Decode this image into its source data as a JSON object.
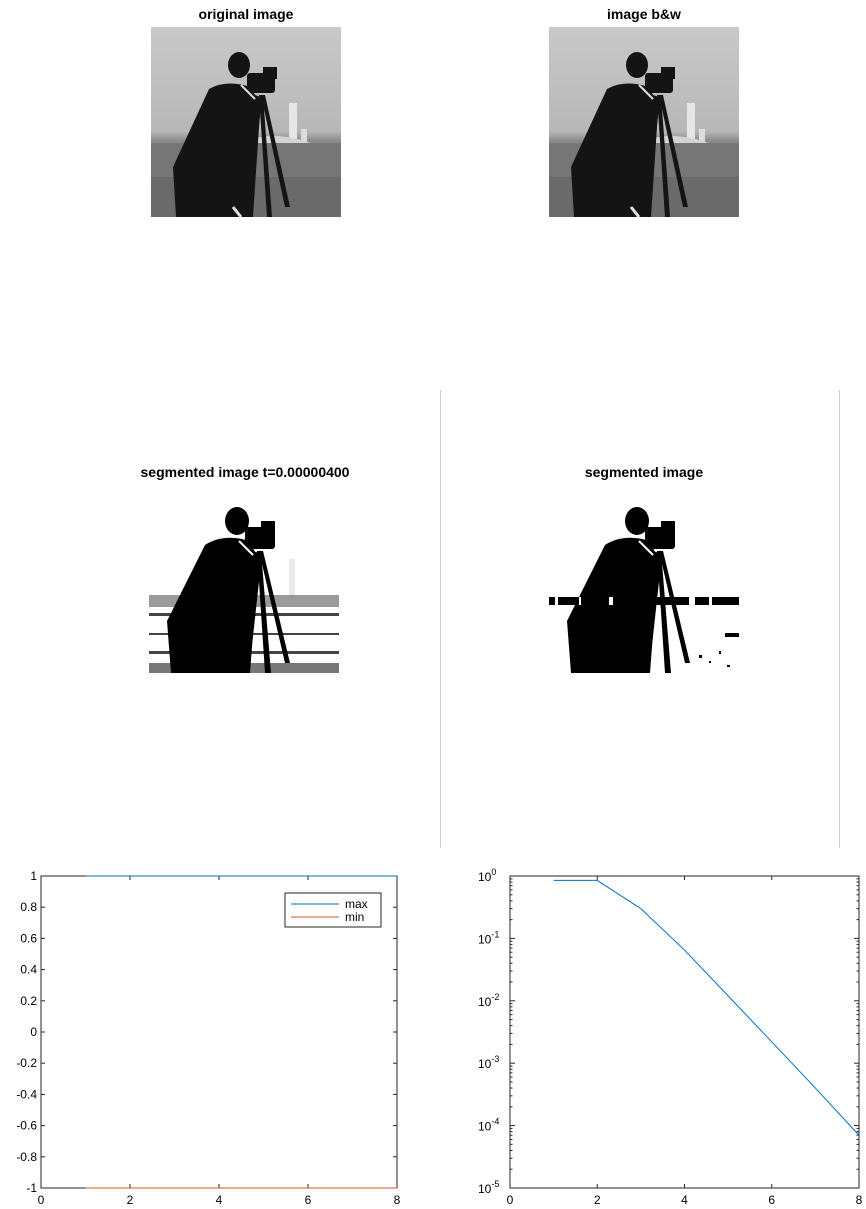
{
  "panels": {
    "original_title": "original image",
    "bw_title": "image b&w",
    "segmented_t_title": "segmented image t=0.00000400",
    "segmented_title": "segmented image"
  },
  "chart_data": [
    {
      "type": "line",
      "x": [
        1,
        2,
        3,
        4,
        5,
        6,
        7,
        8
      ],
      "series": [
        {
          "name": "max",
          "values": [
            1,
            1,
            1,
            1,
            1,
            1,
            1,
            1
          ],
          "color": "#0072BD"
        },
        {
          "name": "min",
          "values": [
            -1,
            -1,
            -1,
            -1,
            -1,
            -1,
            -1,
            -1
          ],
          "color": "#D95319"
        }
      ],
      "xlim": [
        0,
        8
      ],
      "ylim": [
        -1,
        1
      ],
      "xticks": [
        "0",
        "2",
        "4",
        "6",
        "8"
      ],
      "yticks": [
        "-1",
        "-0.8",
        "-0.6",
        "-0.4",
        "-0.2",
        "0",
        "0.2",
        "0.4",
        "0.6",
        "0.8",
        "1"
      ],
      "legend": "top-right",
      "grid": false
    },
    {
      "type": "line",
      "x": [
        1,
        2,
        3,
        4,
        5,
        6,
        7,
        8
      ],
      "series": [
        {
          "values": [
            0.85,
            0.85,
            0.3,
            0.065,
            0.012,
            0.0022,
            0.0004,
            7e-05
          ],
          "color": "#0072BD"
        }
      ],
      "xlim": [
        0,
        8
      ],
      "ylim": [
        1e-05,
        1
      ],
      "yscale": "log",
      "xticks": [
        "0",
        "2",
        "4",
        "6",
        "8"
      ],
      "yticks": [
        {
          "base": "10",
          "exp": "0"
        },
        {
          "base": "10",
          "exp": "-1"
        },
        {
          "base": "10",
          "exp": "-2"
        },
        {
          "base": "10",
          "exp": "-3"
        },
        {
          "base": "10",
          "exp": "-4"
        },
        {
          "base": "10",
          "exp": "-5"
        }
      ],
      "grid": false
    }
  ]
}
